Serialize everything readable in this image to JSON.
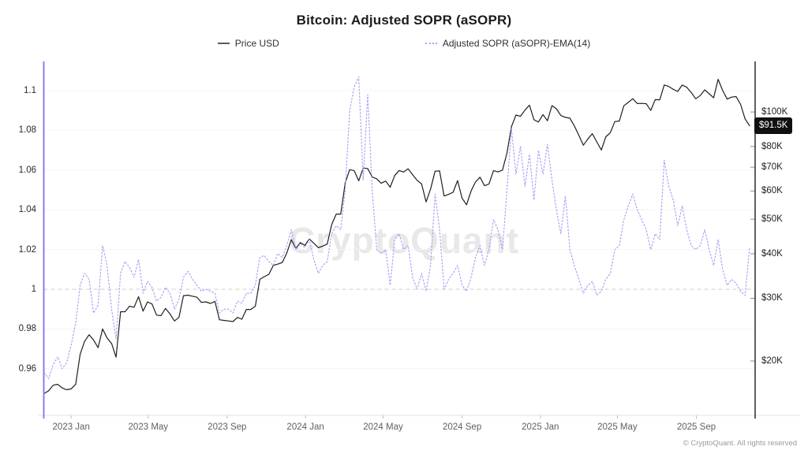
{
  "title": "Bitcoin: Adjusted SOPR (aSOPR)",
  "legend": [
    {
      "label": "Price USD",
      "color": "#5a5a5a",
      "style": "solid"
    },
    {
      "label": "Adjusted SOPR (aSOPR)-EMA(14)",
      "color": "#aba1f5",
      "style": "dotted"
    }
  ],
  "watermark": "CryptoQuant",
  "footer": "© CryptoQuant. All rights reserved",
  "price_badge": "$91.5K",
  "colors": {
    "price_line": "#1f1f1f",
    "sopr_line": "#aba1f5",
    "left_axis_line": "#8b7cf0",
    "right_axis_line": "#2a2a2a",
    "baseline_dash": "#cccccc",
    "gridline": "#f4f4f4",
    "badge_bg": "#101010"
  },
  "chart_data": {
    "type": "line",
    "title": "Bitcoin: Adjusted SOPR (aSOPR)",
    "x": {
      "start_date": "2022-11-20",
      "end_date": "2025-11-21",
      "interval_days": 7,
      "points": 158,
      "tick_labels": [
        "2023 Jan",
        "2023 May",
        "2023 Sep",
        "2024 Jan",
        "2024 May",
        "2024 Sep",
        "2025 Jan",
        "2025 May",
        "2025 Sep"
      ],
      "tick_indices": [
        6.0,
        23.14,
        40.71,
        58.14,
        75.43,
        93.0,
        110.43,
        127.57,
        145.14
      ]
    },
    "left_axis": {
      "series": "Adjusted SOPR (aSOPR)-EMA(14)",
      "scale": "linear",
      "ticks": [
        1.1,
        1.08,
        1.06,
        1.04,
        1.02,
        1,
        0.98,
        0.96
      ],
      "tick_labels": [
        "1.1",
        "1.08",
        "1.06",
        "1.04",
        "1.02",
        "1",
        "0.98",
        "0.96"
      ],
      "range": [
        0.9365,
        1.1147
      ],
      "baseline": 1.0
    },
    "right_axis": {
      "series": "Price USD",
      "scale": "log",
      "ticks_k": [
        100,
        80,
        70,
        60,
        50,
        40,
        30,
        20
      ],
      "tick_labels": [
        "$100K",
        "$80K",
        "$70K",
        "$60K",
        "$50K",
        "$40K",
        "$30K",
        "$20K"
      ],
      "range_k": [
        14.07,
        138.6
      ],
      "current_label": "$91.5K",
      "current_value_k": 91.5
    },
    "series": [
      {
        "name": "Price USD",
        "axis": "right",
        "style": "solid",
        "unit": "USD (thousands)",
        "values": [
          16.2,
          16.5,
          17.1,
          17.2,
          16.8,
          16.6,
          16.7,
          17.2,
          20.9,
          22.7,
          23.7,
          22.9,
          21.8,
          24.6,
          23.2,
          22.4,
          20.5,
          27.5,
          27.5,
          28.5,
          28.3,
          30.3,
          27.6,
          29.3,
          28.9,
          26.9,
          26.8,
          28.1,
          27.1,
          25.9,
          26.5,
          30.5,
          30.6,
          30.4,
          30.2,
          29.2,
          29.3,
          29.0,
          29.4,
          26.1,
          26.0,
          25.9,
          25.8,
          26.5,
          26.2,
          27.9,
          27.9,
          28.5,
          33.9,
          34.5,
          35.0,
          37.1,
          37.4,
          37.8,
          40.2,
          43.8,
          41.4,
          43.0,
          42.2,
          44.0,
          42.8,
          41.6,
          42.0,
          42.6,
          48.3,
          51.7,
          51.7,
          63.2,
          68.9,
          68.4,
          64.1,
          69.6,
          69.4,
          65.7,
          64.9,
          63.1,
          64.0,
          61.5,
          66.3,
          68.5,
          67.8,
          69.3,
          66.7,
          64.3,
          62.8,
          55.9,
          60.8,
          68.2,
          68.3,
          58.1,
          58.7,
          59.5,
          64.2,
          57.3,
          54.9,
          60.0,
          63.6,
          65.6,
          62.1,
          62.8,
          68.4,
          67.9,
          68.7,
          76.7,
          91.0,
          98.0,
          97.2,
          101.2,
          104.5,
          95.1,
          93.7,
          98.3,
          94.5,
          104.2,
          102.1,
          97.7,
          96.6,
          96.1,
          91.4,
          86.0,
          80.7,
          84.0,
          86.9,
          82.4,
          78.2,
          85.2,
          87.5,
          94.0,
          94.3,
          104.1,
          106.4,
          109.0,
          105.6,
          105.7,
          105.5,
          101.0,
          108.3,
          108.2,
          119.1,
          117.9,
          115.8,
          114.2,
          119.0,
          117.4,
          113.4,
          108.9,
          111.2,
          115.4,
          112.5,
          109.6,
          123.5,
          115.0,
          108.7,
          110.1,
          110.5,
          105.0,
          95.6,
          91.5
        ]
      },
      {
        "name": "Adjusted SOPR (aSOPR)-EMA(14)",
        "axis": "left",
        "style": "dotted",
        "unit": "ratio",
        "values": [
          0.958,
          0.955,
          0.962,
          0.966,
          0.96,
          0.963,
          0.972,
          0.983,
          1.002,
          1.008,
          1.005,
          0.988,
          0.992,
          1.022,
          1.012,
          0.99,
          0.975,
          1.008,
          1.014,
          1.011,
          1.006,
          1.015,
          0.998,
          1.004,
          1.001,
          0.994,
          0.996,
          1.001,
          0.998,
          0.99,
          0.995,
          1.006,
          1.009,
          1.005,
          1.002,
          0.999,
          1.0,
          0.999,
          0.998,
          0.988,
          0.99,
          0.99,
          0.988,
          0.994,
          0.993,
          0.998,
          0.998,
          1.002,
          1.016,
          1.017,
          1.014,
          1.012,
          1.018,
          1.016,
          1.022,
          1.03,
          1.02,
          1.023,
          1.021,
          1.025,
          1.015,
          1.008,
          1.012,
          1.014,
          1.028,
          1.032,
          1.03,
          1.05,
          1.09,
          1.102,
          1.107,
          1.055,
          1.098,
          1.05,
          1.02,
          1.018,
          1.02,
          1.002,
          1.025,
          1.028,
          1.02,
          1.022,
          1.006,
          1.0,
          1.008,
          0.999,
          1.012,
          1.048,
          1.03,
          1.0,
          1.005,
          1.008,
          1.012,
          1.002,
          0.999,
          1.006,
          1.016,
          1.022,
          1.012,
          1.02,
          1.035,
          1.03,
          1.02,
          1.05,
          1.081,
          1.058,
          1.072,
          1.052,
          1.068,
          1.045,
          1.07,
          1.058,
          1.073,
          1.055,
          1.04,
          1.028,
          1.047,
          1.02,
          1.012,
          1.005,
          0.998,
          1.002,
          1.004,
          0.997,
          0.999,
          1.005,
          1.008,
          1.02,
          1.022,
          1.035,
          1.042,
          1.048,
          1.04,
          1.035,
          1.03,
          1.02,
          1.028,
          1.025,
          1.065,
          1.052,
          1.045,
          1.032,
          1.042,
          1.03,
          1.022,
          1.02,
          1.022,
          1.03,
          1.02,
          1.012,
          1.025,
          1.01,
          1.002,
          1.005,
          1.003,
          0.999,
          0.997,
          1.021
        ]
      }
    ]
  }
}
